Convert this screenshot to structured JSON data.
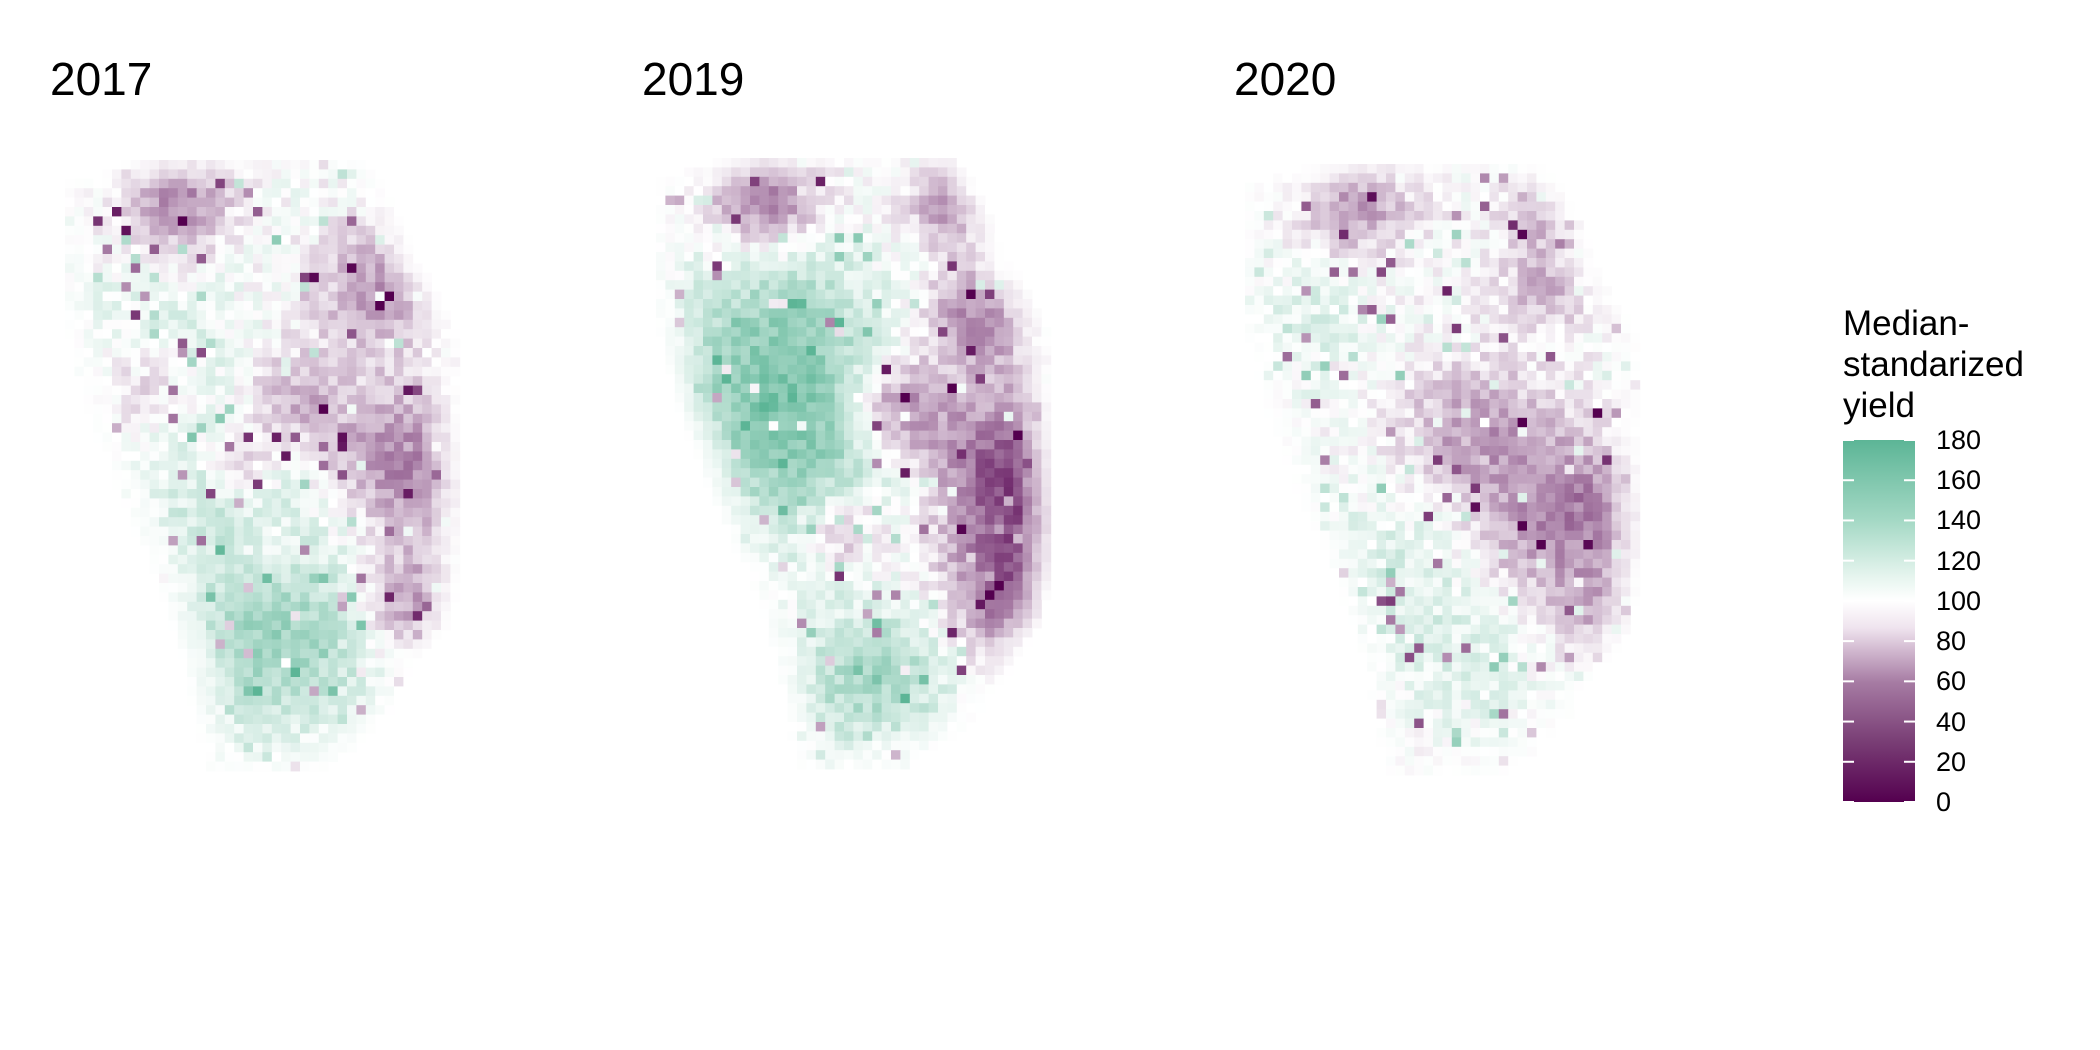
{
  "chart_data": {
    "type": "heatmap",
    "panels": [
      {
        "title": "2017"
      },
      {
        "title": "2019"
      },
      {
        "title": "2020"
      }
    ],
    "legend": {
      "title_lines": [
        "Median-",
        "standarized",
        "yield"
      ],
      "ticks": [
        180,
        160,
        140,
        120,
        100,
        80,
        60,
        40,
        20,
        0
      ],
      "range": [
        0,
        180
      ],
      "palette": {
        "low": "#54004f",
        "mid": "#ffffff",
        "high": "#5cb596"
      }
    },
    "grid": false,
    "axes": "none"
  }
}
